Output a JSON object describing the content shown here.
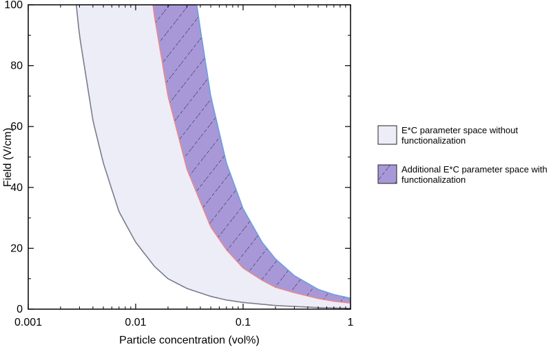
{
  "chart_data": {
    "type": "area",
    "xlabel": "Particle concentration (vol%)",
    "ylabel": "Field (V/cm)",
    "xscale": "log",
    "xlim": [
      0.001,
      1
    ],
    "ylim": [
      0,
      100
    ],
    "grid": false,
    "legend_position": "right-outside",
    "x_ticks": [
      0.001,
      0.01,
      0.1,
      1
    ],
    "x_tick_labels": [
      "0.001",
      "0.01",
      "0.1",
      "1"
    ],
    "y_ticks": [
      0,
      20,
      40,
      60,
      80,
      100
    ],
    "y_tick_labels": [
      "0",
      "20",
      "40",
      "60",
      "80",
      "100"
    ],
    "boundaries": {
      "without_lower": {
        "color": "#7a7a8c",
        "x": [
          0.0028,
          0.003,
          0.004,
          0.005,
          0.007,
          0.01,
          0.015,
          0.02,
          0.03,
          0.05,
          0.07,
          0.1,
          0.2,
          0.5,
          1
        ],
        "y": [
          100,
          90,
          62,
          48,
          32,
          22,
          14,
          10,
          6.8,
          4.2,
          3.0,
          2.2,
          1.2,
          0.5,
          0.25
        ]
      },
      "without_upper": {
        "color": "#e88a8a",
        "x": [
          0.0145,
          0.015,
          0.02,
          0.03,
          0.05,
          0.07,
          0.1,
          0.15,
          0.2,
          0.3,
          0.5,
          0.7,
          1
        ],
        "y": [
          100,
          96,
          70,
          46,
          27,
          19.5,
          13.5,
          9.5,
          7.2,
          5.4,
          3.5,
          2.6,
          2.0
        ]
      },
      "with_upper": {
        "color": "#6a9ee0",
        "x": [
          0.037,
          0.04,
          0.05,
          0.07,
          0.1,
          0.15,
          0.2,
          0.3,
          0.5,
          0.7,
          1
        ],
        "y": [
          100,
          92,
          70,
          48,
          33,
          22,
          16.5,
          11,
          6.5,
          4.8,
          3.6
        ]
      }
    },
    "series": [
      {
        "name": "E*C parameter space without functionalization",
        "fill": "#ededf8",
        "between": [
          "without_lower",
          "without_upper"
        ]
      },
      {
        "name": "Additional E*C parameter space with functionalization",
        "fill": "#a898d8",
        "hatch": true,
        "between": [
          "without_upper",
          "with_upper"
        ]
      }
    ]
  }
}
